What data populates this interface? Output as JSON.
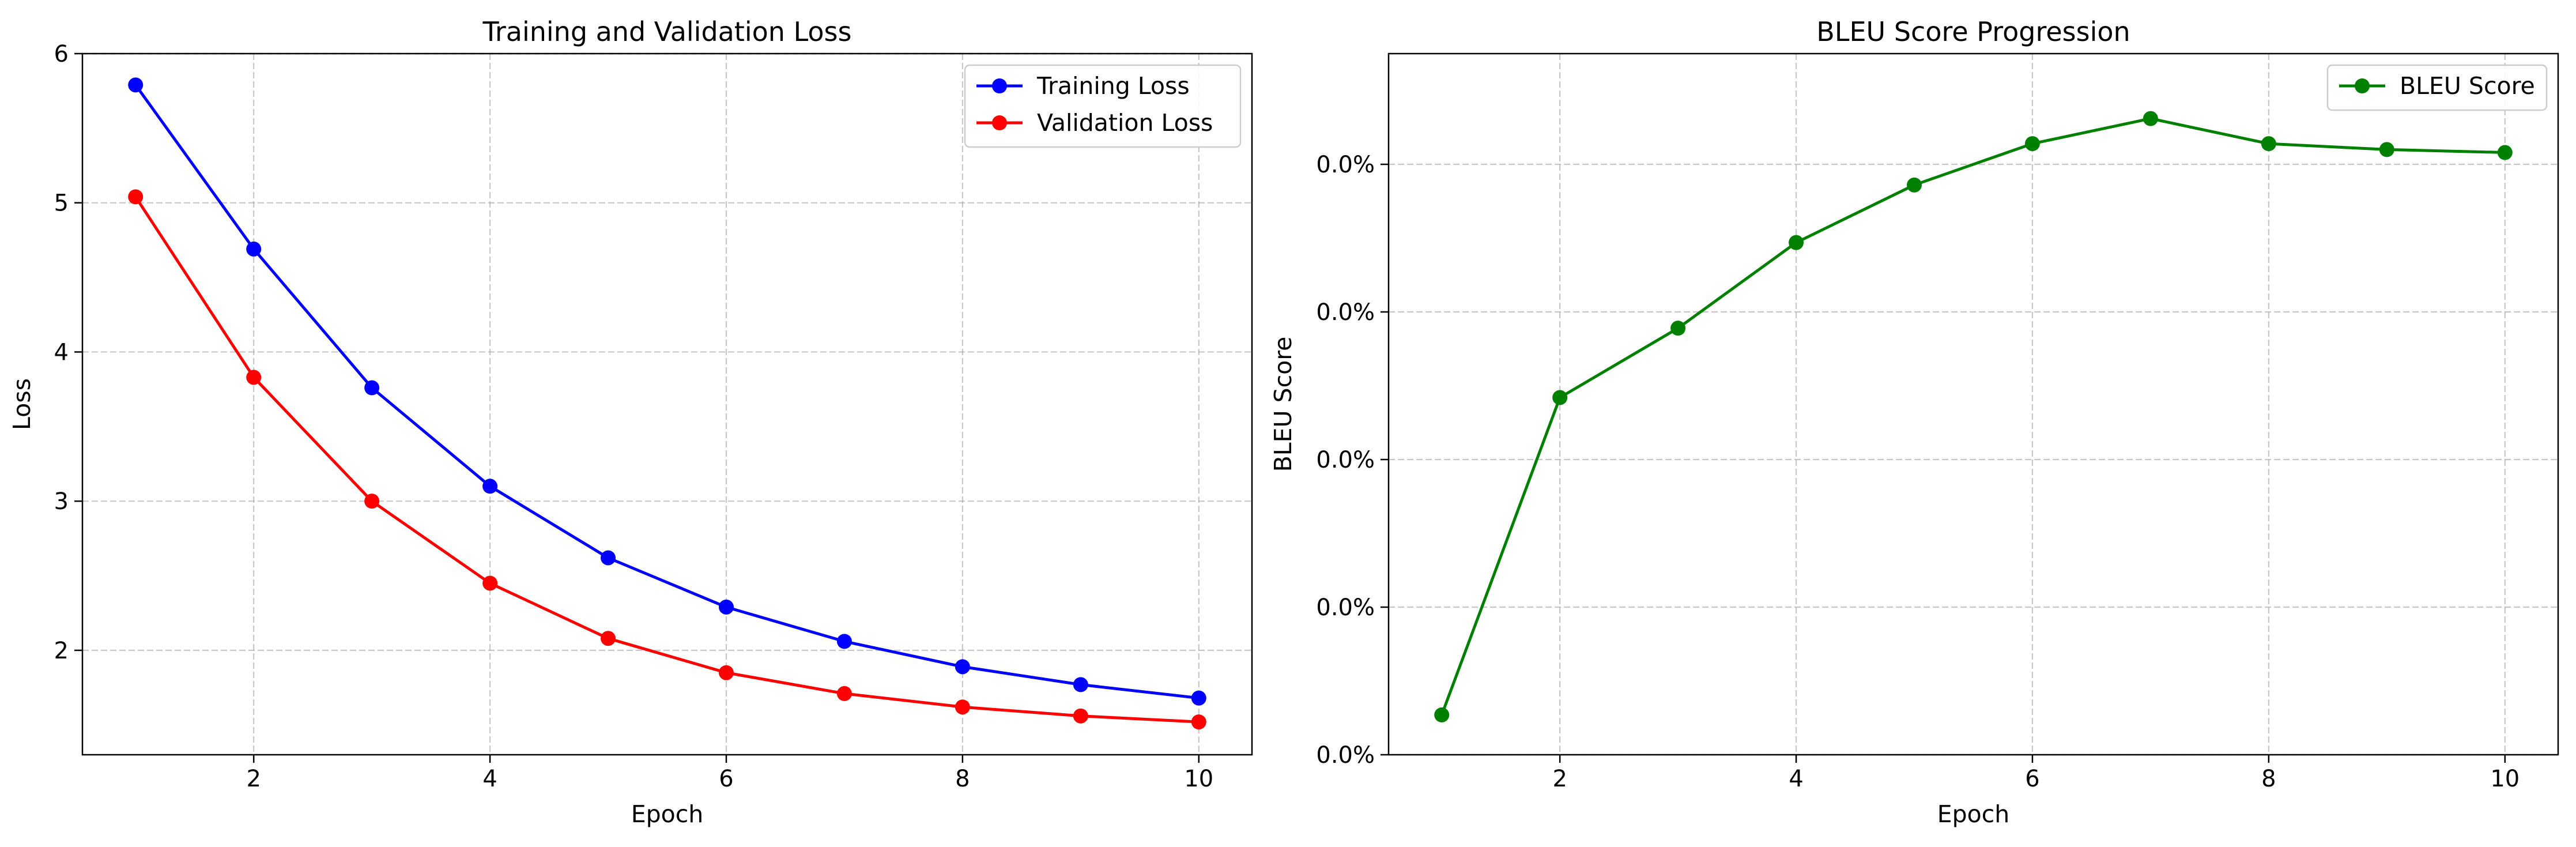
{
  "chart_data": [
    {
      "type": "line",
      "title": "Training and Validation Loss",
      "xlabel": "Epoch",
      "ylabel": "Loss",
      "x": [
        1,
        2,
        3,
        4,
        5,
        6,
        7,
        8,
        9,
        10
      ],
      "xlim": [
        0.55,
        10.45
      ],
      "ylim": [
        1.3,
        6.0
      ],
      "xticks": [
        2,
        4,
        6,
        8,
        10
      ],
      "xtick_labels": [
        "2",
        "4",
        "6",
        "8",
        "10"
      ],
      "yticks": [
        2,
        3,
        4,
        5,
        6
      ],
      "ytick_labels": [
        "2",
        "3",
        "4",
        "5",
        "6"
      ],
      "grid": true,
      "legend_position": "top-right",
      "series": [
        {
          "name": "Training Loss",
          "color": "#0000ff",
          "values": [
            5.79,
            4.69,
            3.76,
            3.1,
            2.62,
            2.29,
            2.06,
            1.89,
            1.77,
            1.68
          ]
        },
        {
          "name": "Validation Loss",
          "color": "#ff0000",
          "values": [
            5.04,
            3.83,
            3.0,
            2.45,
            2.08,
            1.85,
            1.71,
            1.62,
            1.56,
            1.52
          ]
        }
      ]
    },
    {
      "type": "line",
      "title": "BLEU Score Progression",
      "xlabel": "Epoch",
      "ylabel": "BLEU Score",
      "x": [
        1,
        2,
        3,
        4,
        5,
        6,
        7,
        8,
        9,
        10
      ],
      "xlim": [
        0.55,
        10.45
      ],
      "ylim": [
        0.0,
        0.000475
      ],
      "xticks": [
        2,
        4,
        6,
        8,
        10
      ],
      "xtick_labels": [
        "2",
        "4",
        "6",
        "8",
        "10"
      ],
      "yticks": [
        0.0,
        0.0001,
        0.0002,
        0.0003,
        0.0004
      ],
      "ytick_labels": [
        "0.0%",
        "0.0%",
        "0.0%",
        "0.0%",
        "0.0%"
      ],
      "grid": true,
      "legend_position": "top-right",
      "series": [
        {
          "name": "BLEU Score",
          "color": "#008000",
          "values": [
            2.7e-05,
            0.000242,
            0.000289,
            0.000347,
            0.000386,
            0.000414,
            0.000431,
            0.000414,
            0.00041,
            0.000408
          ]
        }
      ]
    }
  ]
}
